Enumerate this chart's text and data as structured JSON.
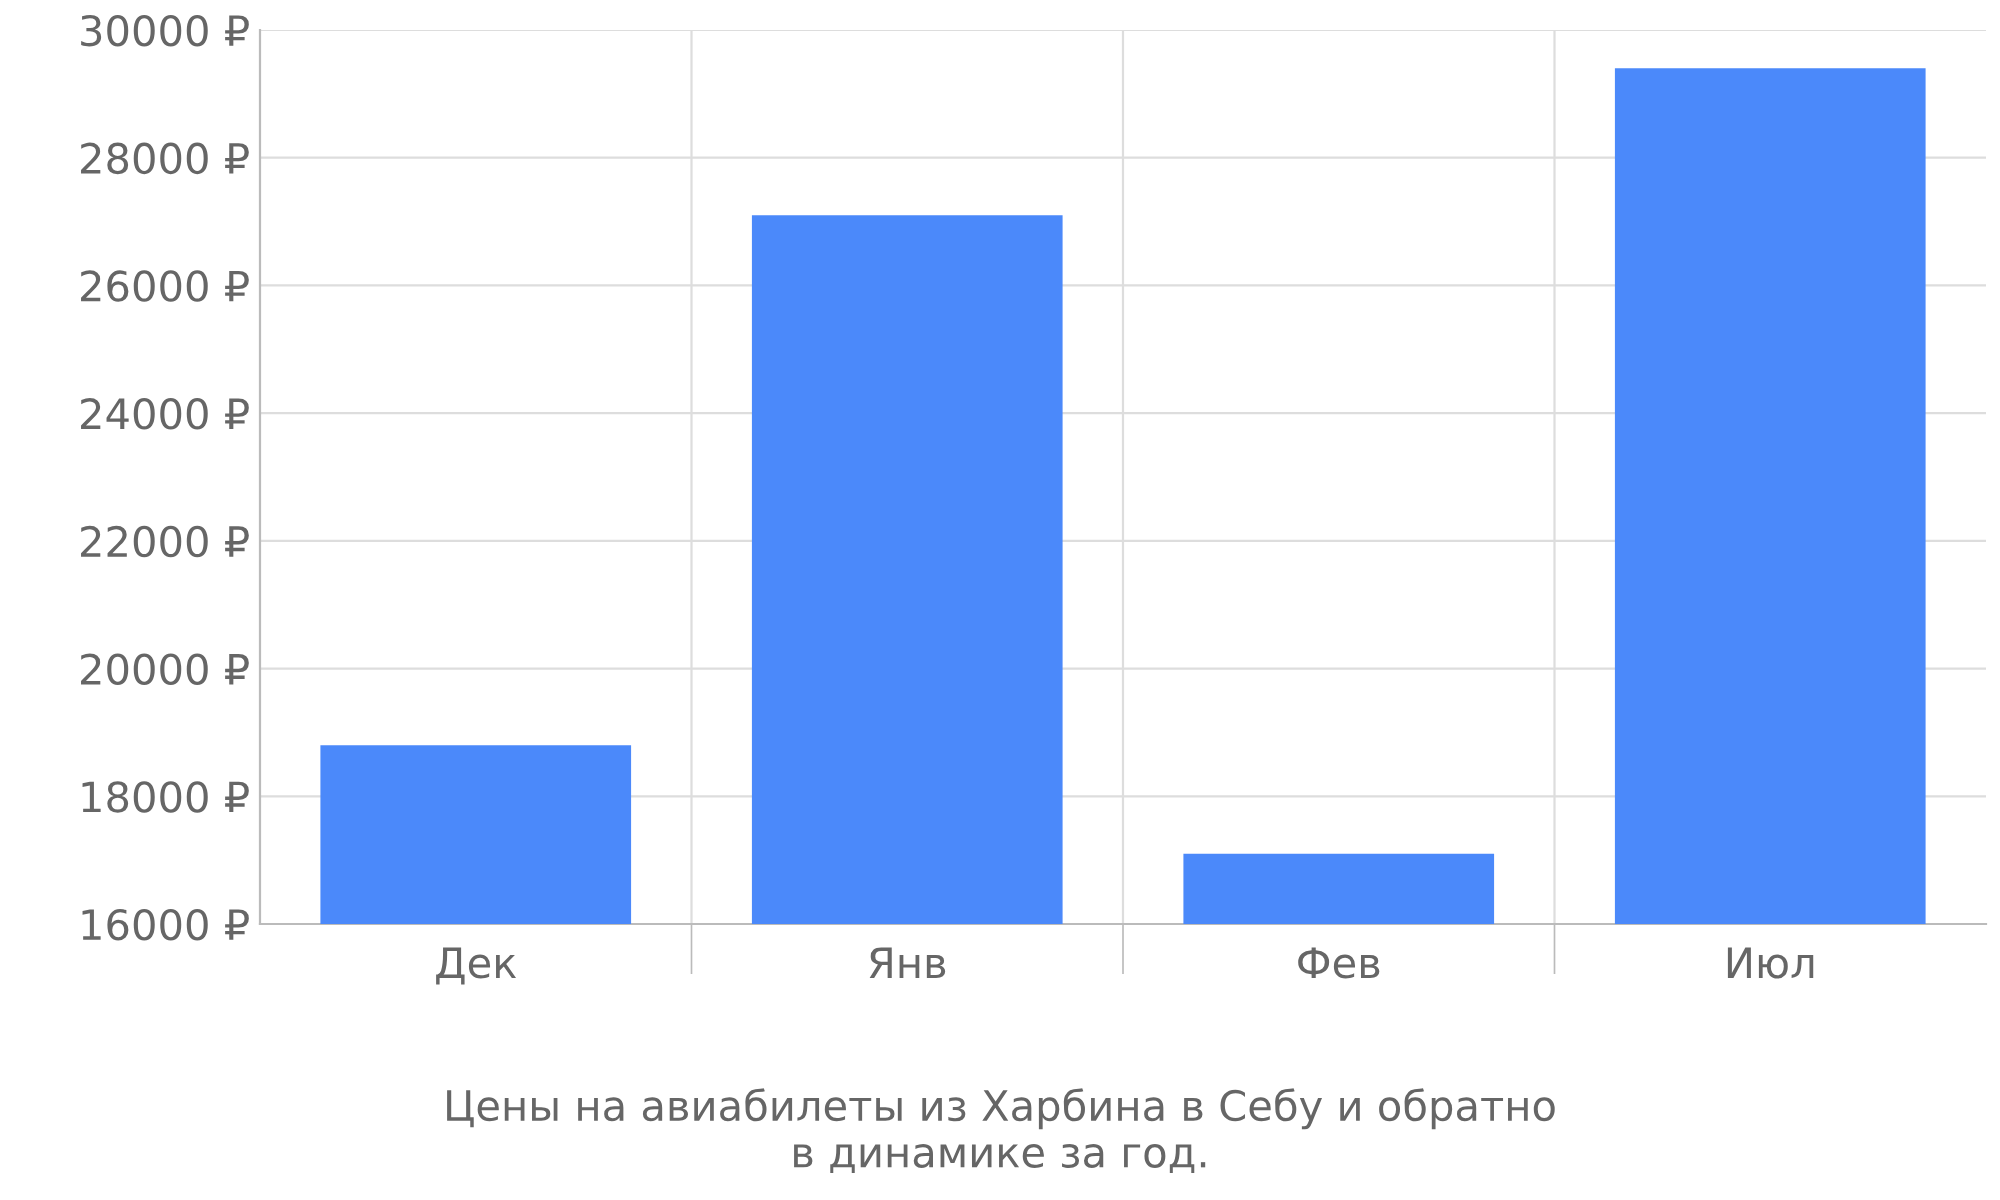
{
  "chart_data": {
    "type": "bar",
    "categories": [
      "Дек",
      "Янв",
      "Фев",
      "Июл"
    ],
    "values": [
      18800,
      27100,
      17100,
      29400
    ],
    "color": "#4b89fa",
    "ylim": [
      16000,
      30000
    ],
    "yticks": [
      {
        "value": 16000,
        "label": "16000 ₽"
      },
      {
        "value": 18000,
        "label": "18000 ₽"
      },
      {
        "value": 20000,
        "label": "20000 ₽"
      },
      {
        "value": 22000,
        "label": "22000 ₽"
      },
      {
        "value": 24000,
        "label": "24000 ₽"
      },
      {
        "value": 26000,
        "label": "26000 ₽"
      },
      {
        "value": 28000,
        "label": "28000 ₽"
      },
      {
        "value": 30000,
        "label": "30000 ₽"
      }
    ],
    "grid": true,
    "annotations": [
      "Цены на авиабилеты из Харбина в Себу и обратно\nв динамике за год."
    ]
  }
}
